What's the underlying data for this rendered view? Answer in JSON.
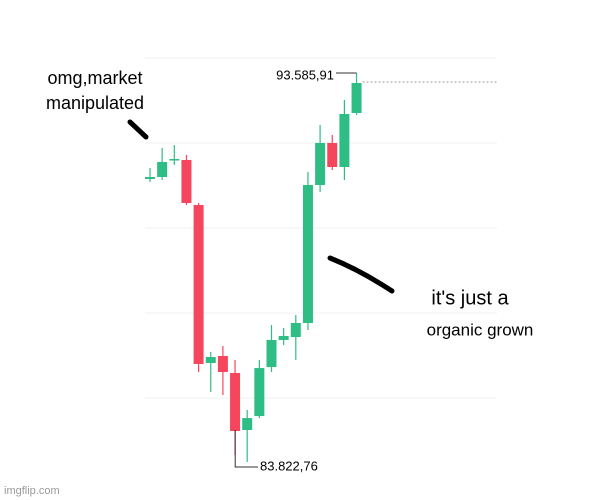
{
  "chart_data": {
    "type": "candlestick",
    "categories": [
      null,
      null,
      null,
      null,
      null,
      null,
      null,
      null,
      null,
      null,
      null,
      null,
      null,
      null,
      null,
      null,
      null,
      null
    ],
    "open": [
      90925,
      90975,
      91402,
      91402,
      90273,
      86307,
      86482,
      86056,
      84625,
      84976,
      86206,
      86884,
      86959,
      87311,
      90775,
      91829,
      91226,
      92582
    ],
    "high": [
      91201,
      91703,
      91778,
      91528,
      90323,
      86583,
      86733,
      86382,
      85127,
      86382,
      87260,
      87185,
      87512,
      91101,
      92281,
      92030,
      92908,
      93585.91
    ],
    "low": [
      90850,
      90900,
      91277,
      90273,
      86081,
      85579,
      85504,
      83998,
      83822.76,
      84924,
      86081,
      86759,
      86382,
      87135,
      90599,
      91151,
      90900,
      92532
    ],
    "close": [
      90975,
      91352,
      91427,
      90323,
      86282,
      86457,
      86081,
      84600,
      84924,
      86180,
      86884,
      86984,
      87311,
      90775,
      91829,
      91226,
      92557,
      93335
    ],
    "up_color": "#2ebd85",
    "down_color": "#f6465d",
    "ylim": [
      82868,
      95418
    ],
    "max_marker": {
      "value": 93585.91,
      "label": "93.585,91"
    },
    "min_marker": {
      "value": 83822.76,
      "label": "83.822,76"
    },
    "annotations": [
      "omg,market",
      "manipulated",
      "it's just a",
      "organic grown"
    ],
    "watermark": "imgflip.com"
  }
}
